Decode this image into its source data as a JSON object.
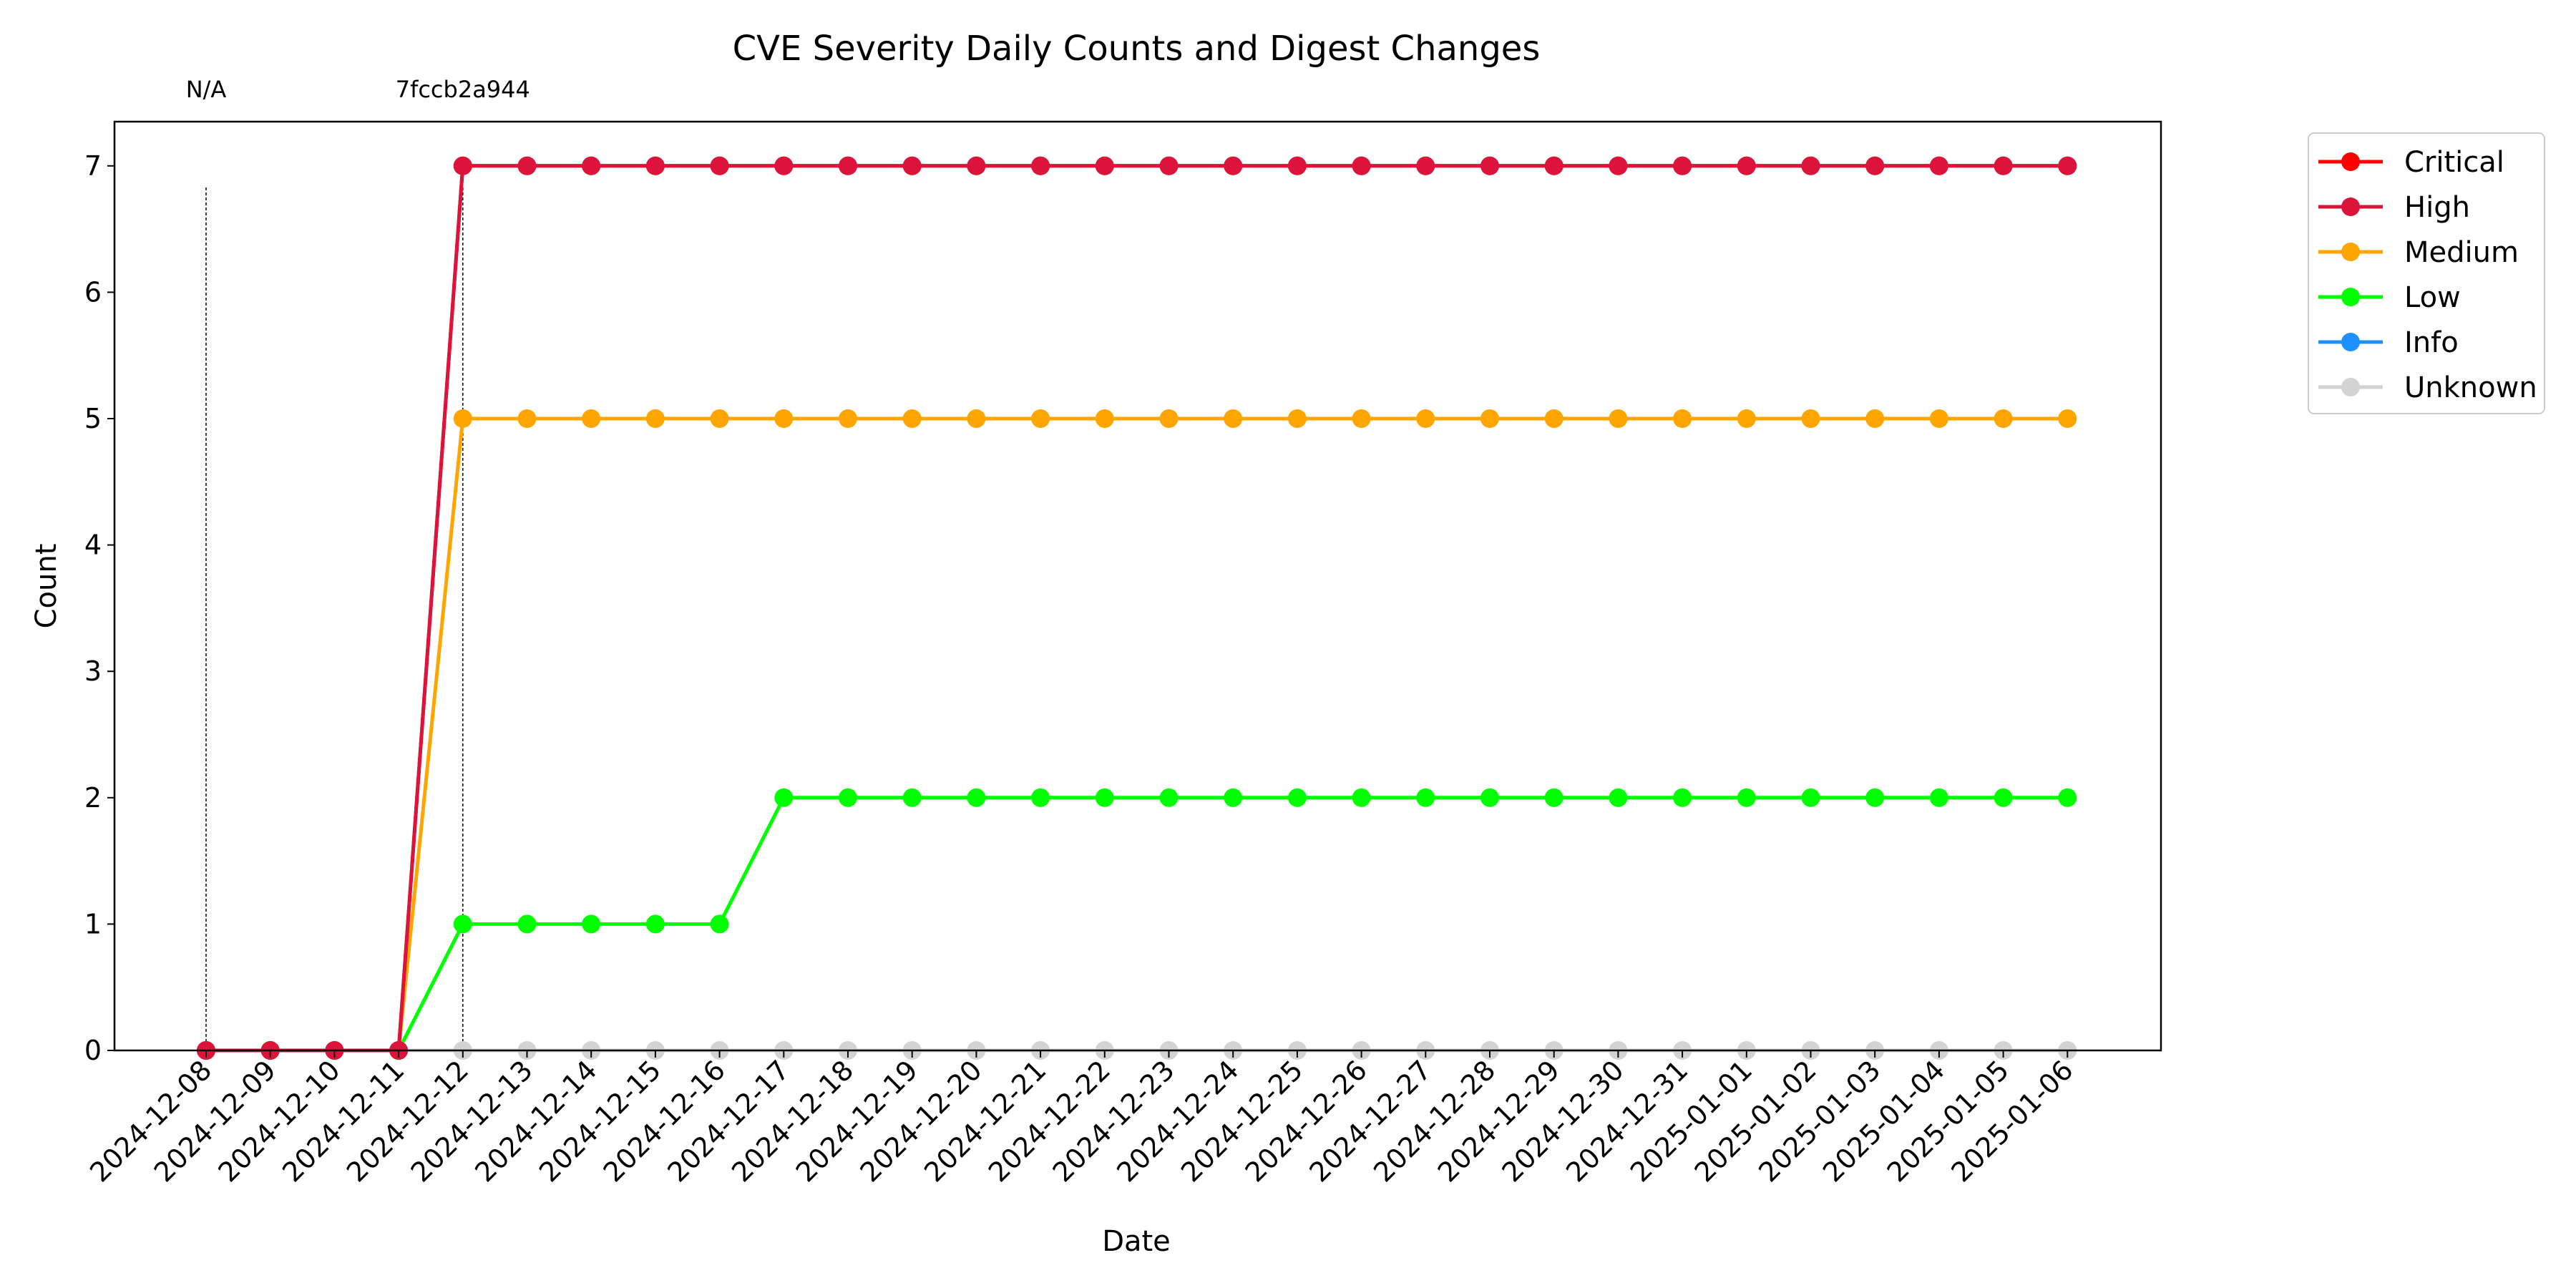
{
  "chart_data": {
    "type": "line",
    "title": "CVE Severity Daily Counts and Digest Changes",
    "xlabel": "Date",
    "ylabel": "Count",
    "ylim": [
      0,
      7.35
    ],
    "yticks": [
      0,
      1,
      2,
      3,
      4,
      5,
      6,
      7
    ],
    "grid": false,
    "legend_position": "outside-right",
    "categories": [
      "2024-12-08",
      "2024-12-09",
      "2024-12-10",
      "2024-12-11",
      "2024-12-12",
      "2024-12-13",
      "2024-12-14",
      "2024-12-15",
      "2024-12-16",
      "2024-12-17",
      "2024-12-18",
      "2024-12-19",
      "2024-12-20",
      "2024-12-21",
      "2024-12-22",
      "2024-12-23",
      "2024-12-24",
      "2024-12-25",
      "2024-12-26",
      "2024-12-27",
      "2024-12-28",
      "2024-12-29",
      "2024-12-30",
      "2024-12-31",
      "2025-01-01",
      "2025-01-02",
      "2025-01-03",
      "2025-01-04",
      "2025-01-05",
      "2025-01-06"
    ],
    "series": [
      {
        "name": "Critical",
        "color": "#ff0000",
        "values": [
          0,
          0,
          0,
          0,
          7,
          7,
          7,
          7,
          7,
          7,
          7,
          7,
          7,
          7,
          7,
          7,
          7,
          7,
          7,
          7,
          7,
          7,
          7,
          7,
          7,
          7,
          7,
          7,
          7,
          7
        ]
      },
      {
        "name": "High",
        "color": "#dc143c",
        "values": [
          0,
          0,
          0,
          0,
          7,
          7,
          7,
          7,
          7,
          7,
          7,
          7,
          7,
          7,
          7,
          7,
          7,
          7,
          7,
          7,
          7,
          7,
          7,
          7,
          7,
          7,
          7,
          7,
          7,
          7
        ]
      },
      {
        "name": "Medium",
        "color": "#ffa500",
        "values": [
          0,
          0,
          0,
          0,
          5,
          5,
          5,
          5,
          5,
          5,
          5,
          5,
          5,
          5,
          5,
          5,
          5,
          5,
          5,
          5,
          5,
          5,
          5,
          5,
          5,
          5,
          5,
          5,
          5,
          5
        ]
      },
      {
        "name": "Low",
        "color": "#00ff00",
        "values": [
          0,
          0,
          0,
          0,
          1,
          1,
          1,
          1,
          1,
          2,
          2,
          2,
          2,
          2,
          2,
          2,
          2,
          2,
          2,
          2,
          2,
          2,
          2,
          2,
          2,
          2,
          2,
          2,
          2,
          2
        ]
      },
      {
        "name": "Info",
        "color": "#1e90ff",
        "values": [
          null,
          null,
          null,
          null,
          null,
          null,
          null,
          null,
          null,
          null,
          null,
          null,
          null,
          null,
          null,
          null,
          null,
          null,
          null,
          null,
          null,
          null,
          null,
          null,
          null,
          null,
          null,
          null,
          null,
          null
        ]
      },
      {
        "name": "Unknown",
        "color": "#d3d3d3",
        "values": [
          0,
          0,
          0,
          0,
          0,
          0,
          0,
          0,
          0,
          0,
          0,
          0,
          0,
          0,
          0,
          0,
          0,
          0,
          0,
          0,
          0,
          0,
          0,
          0,
          0,
          0,
          0,
          0,
          0,
          0
        ]
      }
    ],
    "series_draw_order": [
      "Unknown",
      "Info",
      "Low",
      "Medium",
      "Critical",
      "High"
    ],
    "digest_changes": [
      {
        "date": "2024-12-08",
        "label": "N/A"
      },
      {
        "date": "2024-12-12",
        "label": "7fccb2a944"
      }
    ]
  }
}
